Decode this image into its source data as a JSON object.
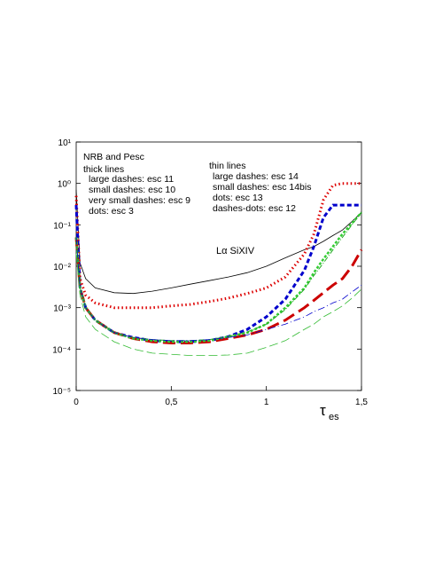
{
  "chart_data": {
    "type": "line",
    "x_label": "τ",
    "x_label_subscript": "es",
    "annotations": [
      "NRB and Pesc",
      "thick lines",
      "large dashes: esc 11",
      "small dashes: esc 10",
      "very small dashes: esc 9",
      "dots: esc 3",
      "thin lines",
      "large dashes: esc 14",
      "small dashes: esc 14bis",
      "dots: esc 13",
      "dashes-dots: esc 12",
      "Lα  SiXIV"
    ],
    "log_y": true,
    "xlim": [
      0,
      1.5
    ],
    "ylim": [
      1e-05,
      10
    ],
    "xticks": [
      0,
      {
        "value": 0.5,
        "label": "0,5"
      },
      1,
      {
        "value": 1.5,
        "label": "1,5"
      }
    ],
    "yticks": [
      {
        "value": 1e-05,
        "label": "10⁻⁵"
      },
      {
        "value": 0.0001,
        "label": "10⁻⁴"
      },
      {
        "value": 0.001,
        "label": "10⁻³"
      },
      {
        "value": 0.01,
        "label": "10⁻²"
      },
      {
        "value": 0.1,
        "label": "10⁻¹"
      },
      {
        "value": 1,
        "label": "10⁰"
      },
      {
        "value": 10,
        "label": "10¹"
      }
    ],
    "x": [
      0,
      0.02,
      0.05,
      0.1,
      0.2,
      0.3,
      0.4,
      0.5,
      0.6,
      0.7,
      0.8,
      0.9,
      1.0,
      1.1,
      1.2,
      1.25,
      1.3,
      1.35,
      1.4,
      1.45,
      1.5
    ],
    "series": [
      {
        "color": "#000000",
        "width": 0.8,
        "dash": "none",
        "values": [
          0.7,
          0.012,
          0.005,
          0.003,
          0.0023,
          0.0022,
          0.0025,
          0.003,
          0.0037,
          0.0045,
          0.0055,
          0.007,
          0.01,
          0.016,
          0.025,
          0.03,
          0.04,
          0.055,
          0.075,
          0.12,
          0.2
        ]
      },
      {
        "color": "#dd0000",
        "width": 3,
        "dash": "1.5 3",
        "values": [
          0.5,
          0.005,
          0.002,
          0.0013,
          0.001,
          0.001,
          0.001,
          0.0011,
          0.0012,
          0.0014,
          0.0017,
          0.0022,
          0.003,
          0.0055,
          0.02,
          0.06,
          0.4,
          0.9,
          1,
          1,
          1
        ]
      },
      {
        "color": "#0000cc",
        "width": 3,
        "dash": "5 3",
        "values": [
          0.3,
          0.003,
          0.001,
          0.0005,
          0.00025,
          0.00019,
          0.00016,
          0.00015,
          0.00015,
          0.00016,
          0.0002,
          0.0003,
          0.0006,
          0.0016,
          0.008,
          0.03,
          0.15,
          0.3,
          0.3,
          0.3,
          0.3
        ]
      },
      {
        "color": "#cc0000",
        "width": 3,
        "dash": "14 6",
        "values": [
          0.05,
          0.003,
          0.001,
          0.0005,
          0.00025,
          0.00018,
          0.00015,
          0.00014,
          0.00014,
          0.00015,
          0.00018,
          0.00022,
          0.0003,
          0.0005,
          0.001,
          0.0015,
          0.0023,
          0.0035,
          0.005,
          0.01,
          0.025
        ]
      },
      {
        "color": "#33cc33",
        "width": 2.5,
        "dash": "3 2",
        "values": [
          0.05,
          0.003,
          0.001,
          0.0005,
          0.00025,
          0.00018,
          0.00016,
          0.00015,
          0.00015,
          0.00016,
          0.0002,
          0.00025,
          0.0004,
          0.001,
          0.003,
          0.007,
          0.015,
          0.03,
          0.06,
          0.11,
          0.2
        ]
      },
      {
        "color": "#22aa22",
        "width": 1,
        "dash": "6 2 1 2",
        "values": [
          0.05,
          0.003,
          0.001,
          0.0005,
          0.00025,
          0.00019,
          0.00017,
          0.00016,
          0.00016,
          0.00017,
          0.0002,
          0.00026,
          0.0004,
          0.0009,
          0.0028,
          0.006,
          0.012,
          0.025,
          0.05,
          0.1,
          0.2
        ]
      },
      {
        "color": "#0000cc",
        "width": 0.8,
        "dash": "8 3 1 3",
        "values": [
          0.05,
          0.003,
          0.001,
          0.0005,
          0.00025,
          0.00019,
          0.00017,
          0.00016,
          0.00016,
          0.00017,
          0.00019,
          0.00022,
          0.0003,
          0.0004,
          0.0006,
          0.0008,
          0.001,
          0.0013,
          0.0016,
          0.0024,
          0.0035
        ]
      },
      {
        "color": "#33bb33",
        "width": 0.8,
        "dash": "10 4",
        "values": [
          0.02,
          0.002,
          0.0006,
          0.0003,
          0.00015,
          0.0001,
          8e-05,
          7.5e-05,
          7e-05,
          7e-05,
          7.2e-05,
          8e-05,
          0.00011,
          0.00016,
          0.0003,
          0.0004,
          0.0006,
          0.0008,
          0.0011,
          0.0017,
          0.0028
        ]
      }
    ]
  }
}
